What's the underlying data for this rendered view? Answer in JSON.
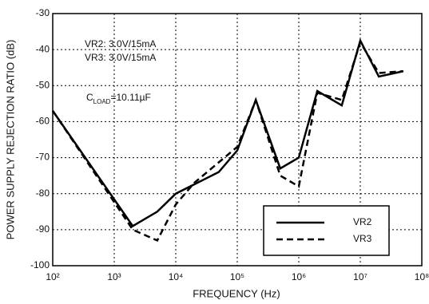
{
  "chart_data": {
    "type": "line",
    "xlabel": "FREQUENCY (Hz)",
    "ylabel": "POWER SUPPLY REJECTION RATIO (dB)",
    "annotations": [
      "VR2: 3.0V/15mA",
      "VR3: 3.0V/15mA"
    ],
    "cap_annotation": {
      "text": "C",
      "subscript": "LOAD",
      "rest": "=10.11µF"
    },
    "xscale": "log",
    "xlim": [
      100,
      100000000
    ],
    "xticks": [
      {
        "value": 100,
        "label": "10²"
      },
      {
        "value": 1000,
        "label": "10³"
      },
      {
        "value": 10000,
        "label": "10⁴"
      },
      {
        "value": 100000,
        "label": "10⁵"
      },
      {
        "value": 1000000,
        "label": "10⁶"
      },
      {
        "value": 10000000,
        "label": "10⁷"
      },
      {
        "value": 100000000,
        "label": "10⁸"
      }
    ],
    "ylim": [
      -100,
      -30
    ],
    "yticks": [
      -100,
      -90,
      -80,
      -70,
      -60,
      -50,
      -40,
      -30
    ],
    "grid": true,
    "legend": "lower right",
    "series": [
      {
        "name": "VR2",
        "color": "#000000",
        "style": "solid",
        "x": [
          100,
          2000,
          5000,
          10000,
          50000,
          100000,
          200000,
          500000,
          1000000,
          2000000,
          5000000,
          10000000,
          20000000,
          50000000
        ],
        "values": [
          -57,
          -89,
          -85,
          -80,
          -74,
          -68,
          -54,
          -73,
          -70,
          -51.5,
          -55.5,
          -37.5,
          -47.5,
          -46
        ]
      },
      {
        "name": "VR3",
        "color": "#000000",
        "style": "dashed",
        "x": [
          100,
          2000,
          5000,
          10000,
          20000,
          100000,
          200000,
          500000,
          1000000,
          2000000,
          5000000,
          10000000,
          20000000,
          50000000
        ],
        "values": [
          -57,
          -90,
          -93,
          -83,
          -77,
          -67,
          -54,
          -75,
          -78,
          -52,
          -54,
          -38,
          -46.5,
          -46
        ]
      }
    ]
  }
}
